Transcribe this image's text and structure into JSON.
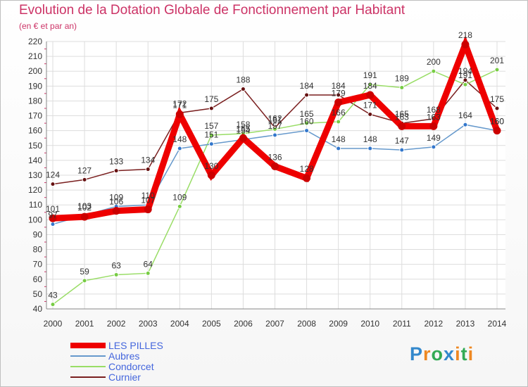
{
  "header": {
    "title": "Evolution de la Dotation Globale de Fonctionnement par Habitant",
    "subtitle": "(en € et par an)"
  },
  "logo": {
    "text": "Proxiti"
  },
  "colors": {
    "title": "#cc3366",
    "axis_text": "#333333",
    "grid": "#dddddd",
    "legend_text": "#4466dd"
  },
  "chart_data": {
    "type": "line",
    "title": "Evolution de la Dotation Globale de Fonctionnement par Habitant",
    "subtitle": "(en € et par an)",
    "xlabel": "",
    "ylabel": "",
    "x": [
      "2000",
      "2001",
      "2002",
      "2003",
      "2004",
      "2005",
      "2006",
      "2007",
      "2008",
      "2009",
      "2010",
      "2011",
      "2012",
      "2013",
      "2014"
    ],
    "ylim": [
      40,
      220
    ],
    "yticks": [
      40,
      50,
      60,
      70,
      80,
      90,
      100,
      110,
      120,
      130,
      140,
      150,
      160,
      170,
      180,
      190,
      200,
      210,
      220
    ],
    "grid": true,
    "legend_position": "bottom-left",
    "series": [
      {
        "name": "Curnier",
        "color": "#7a1f1f",
        "marker": "#661111",
        "thick": false,
        "values": [
          124,
          127,
          133,
          134,
          172,
          175,
          188,
          162,
          184,
          184,
          171,
          165,
          168,
          194,
          175
        ]
      },
      {
        "name": "Condorcet",
        "color": "#99dd66",
        "marker": "#77cc44",
        "thick": false,
        "values": [
          43,
          59,
          63,
          64,
          109,
          157,
          158,
          161,
          165,
          166,
          191,
          189,
          200,
          191,
          201
        ]
      },
      {
        "name": "Aubres",
        "color": "#6699cc",
        "marker": "#3377cc",
        "thick": false,
        "values": [
          97,
          103,
          109,
          110,
          148,
          151,
          154,
          157,
          160,
          148,
          148,
          147,
          149,
          164,
          160
        ]
      },
      {
        "name": "LES PILLES",
        "color": "#ee0000",
        "marker": "#cc0000",
        "thick": true,
        "values": [
          101,
          102,
          106,
          107,
          171,
          130,
          155,
          136,
          128,
          179,
          184,
          163,
          163,
          218,
          160
        ]
      }
    ],
    "legend": [
      "LES PILLES",
      "Aubres",
      "Condorcet",
      "Curnier"
    ]
  }
}
